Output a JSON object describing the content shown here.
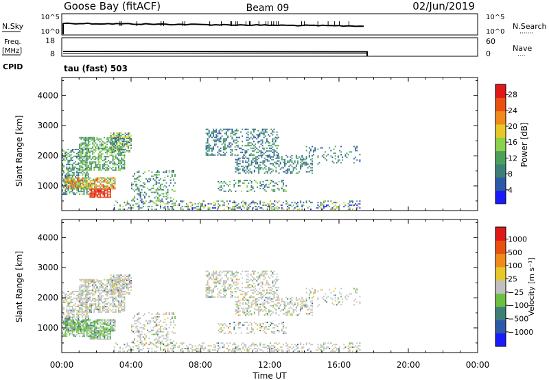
{
  "header": {
    "station": "Goose Bay (fitACF)",
    "beam": "Beam 09",
    "date": "02/Jun/2019"
  },
  "noise_panel": {
    "left_label": "N.Sky",
    "right_label": "N.Search",
    "right_dots": "·······",
    "left_ticks": [
      "10^5",
      "10^0"
    ],
    "right_ticks": [
      "10^5",
      "10^0"
    ]
  },
  "freq_panel": {
    "left_label_1": "Freq.",
    "left_label_2": "[MHz]",
    "right_label": "Nave",
    "right_dots": "····",
    "left_ticks": [
      "18",
      "8"
    ],
    "right_ticks": [
      "60",
      "0"
    ],
    "cpid_label": "CPID",
    "cpid_value": "tau (fast) 503"
  },
  "colors": {
    "power": [
      "#1a1aff",
      "#2c5aa8",
      "#3d7f77",
      "#4aa05a",
      "#8bd14a",
      "#e8c828",
      "#f08a18",
      "#e85010",
      "#e01818"
    ],
    "velocity": [
      "#1a1aff",
      "#2c5aa8",
      "#3d7f77",
      "#6cc040",
      "#c0c0c0",
      "#e8c828",
      "#f08a18",
      "#e85010",
      "#e01818"
    ]
  },
  "chart_data": [
    {
      "type": "heatmap",
      "name": "power",
      "ylabel": "Slant Range [km]",
      "y_ticks": [
        "1000",
        "2000",
        "3000",
        "4000"
      ],
      "ylim": [
        180,
        4600
      ],
      "xlim": [
        "00:00",
        "24:00"
      ],
      "colorbar_label": "Power [dB]",
      "colorbar_ticks": [
        "4",
        "8",
        "12",
        "16",
        "20",
        "24",
        "28"
      ],
      "colorbar_range": [
        0,
        30
      ]
    },
    {
      "type": "heatmap",
      "name": "velocity",
      "ylabel": "Slant Range [km]",
      "y_ticks": [
        "1000",
        "2000",
        "3000",
        "4000"
      ],
      "ylim": [
        180,
        4600
      ],
      "xlim": [
        "00:00",
        "24:00"
      ],
      "xlabel": "Time UT",
      "x_ticks": [
        "00:00",
        "04:00",
        "08:00",
        "12:00",
        "16:00",
        "20:00",
        "00:00"
      ],
      "colorbar_label": "Velocity [m s⁻¹]",
      "colorbar_ticks": [
        "1000",
        "500",
        "100",
        "25",
        "−25",
        "−100",
        "−500",
        "−1000"
      ]
    }
  ]
}
